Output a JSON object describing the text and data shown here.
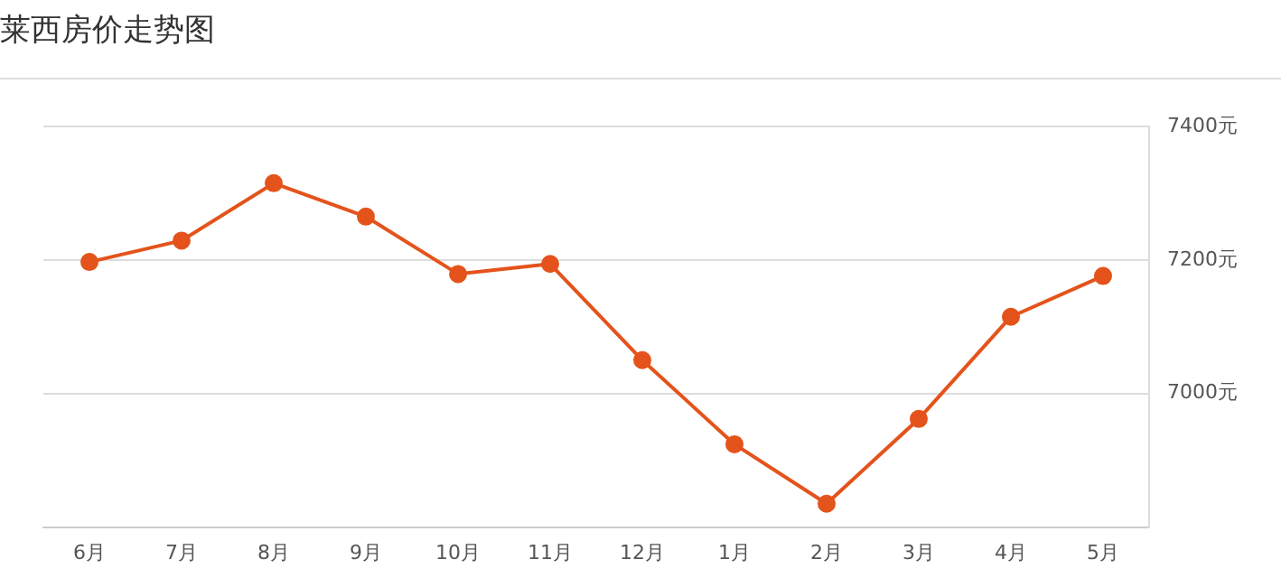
{
  "chart_data": {
    "type": "line",
    "title": "莱西房价走势图",
    "categories": [
      "6月",
      "7月",
      "8月",
      "9月",
      "10月",
      "11月",
      "12月",
      "1月",
      "2月",
      "3月",
      "4月",
      "5月"
    ],
    "series": [
      {
        "color": "#e4531b",
        "values": [
          7197,
          7229,
          7315,
          7265,
          7179,
          7194,
          7050,
          6924,
          6835,
          6962,
          7115,
          7176
        ]
      }
    ],
    "ylim": [
      6800,
      7400
    ],
    "yticks": [
      {
        "value": 7000,
        "label": "7000元"
      },
      {
        "value": 7200,
        "label": "7200元"
      },
      {
        "value": 7400,
        "label": "7400元"
      }
    ],
    "grid": "y",
    "legend": false,
    "marker": "circle",
    "line_style": "solid"
  }
}
